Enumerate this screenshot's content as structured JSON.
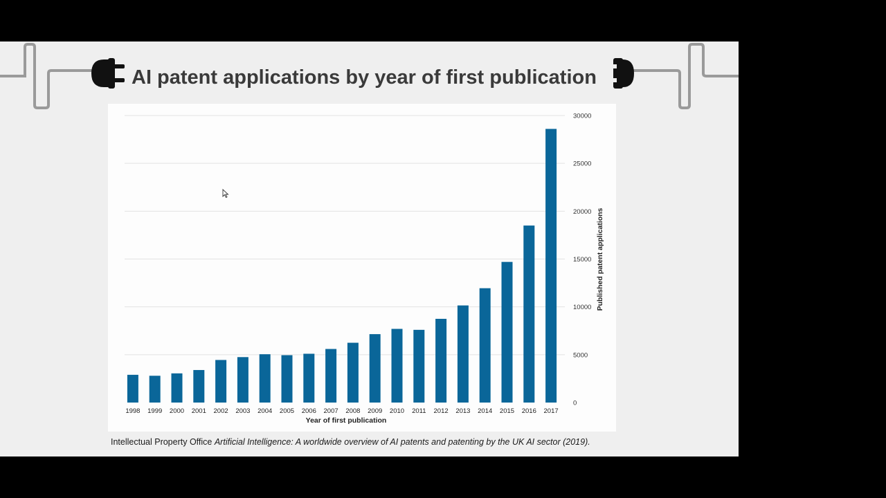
{
  "slide": {
    "title": "AI patent applications by year of first publication",
    "caption_prefix": "Intellectual Property Office ",
    "caption_italic": "Artificial Intelligence: A worldwide overview of AI patents and patenting by the UK AI sector (2019)."
  },
  "colors": {
    "bar": "#0a6699",
    "grid": "#e2e2e2",
    "title": "#3a3a3a",
    "deco_line": "#9a9a9a",
    "plug": "#111111"
  },
  "icons": [
    "plug-icon",
    "socket-icon",
    "cursor-icon"
  ],
  "chart_data": {
    "type": "bar",
    "categories": [
      "1998",
      "1999",
      "2000",
      "2001",
      "2002",
      "2003",
      "2004",
      "2005",
      "2006",
      "2007",
      "2008",
      "2009",
      "2010",
      "2011",
      "2012",
      "2013",
      "2014",
      "2015",
      "2016",
      "2017"
    ],
    "values": [
      2900,
      2800,
      3050,
      3400,
      4450,
      4750,
      5050,
      4950,
      5100,
      5600,
      6250,
      7150,
      7700,
      7600,
      8750,
      10150,
      11950,
      14700,
      18500,
      28600
    ],
    "xlabel": "Year of first publication",
    "ylabel": "Published patent applications",
    "ylim": [
      0,
      30000
    ],
    "yticks": [
      0,
      5000,
      10000,
      15000,
      20000,
      25000,
      30000
    ],
    "grid": true,
    "y_axis_side": "right"
  }
}
